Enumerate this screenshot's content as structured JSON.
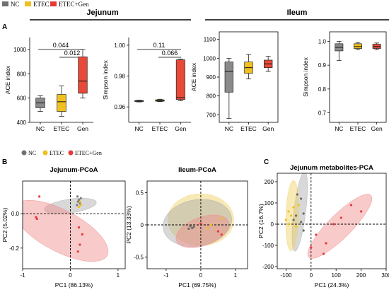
{
  "legend_top": [
    {
      "label": "NC",
      "color": "#707070"
    },
    {
      "label": "ETEC",
      "color": "#f0c020"
    },
    {
      "label": "ETEC+Gen",
      "color": "#e83838"
    }
  ],
  "legend_b": [
    {
      "label": "NC",
      "color": "#707070"
    },
    {
      "label": "ETEC",
      "color": "#f0c020"
    },
    {
      "label": "ETEC+Gen",
      "color": "#e83838"
    }
  ],
  "section_labels": {
    "jejunum": "Jejunum",
    "ileum": "Ileum"
  },
  "panel_letters": {
    "a": "A",
    "b": "B",
    "c": "C"
  },
  "sig": {
    "ace_jej_1": "0.044",
    "ace_jej_2": "0.012",
    "simp_jej_1": "0.11",
    "simp_jej_2": "0.066"
  },
  "chart_data": [
    {
      "id": "ace_jejunum",
      "type": "box",
      "ylabel": "ACE index",
      "categories": [
        "NC",
        "ETEC",
        "Gen"
      ],
      "yticks": [
        400,
        600,
        800,
        1000
      ],
      "ylim": [
        400,
        1100
      ],
      "boxes": [
        {
          "min": 490,
          "q1": 520,
          "median": 560,
          "q3": 600,
          "max": 620,
          "color": "#8a8a8a"
        },
        {
          "min": 450,
          "q1": 490,
          "median": 570,
          "q3": 630,
          "max": 700,
          "color": "#f0c020"
        },
        {
          "min": 600,
          "q1": 640,
          "median": 740,
          "q3": 940,
          "max": 1000,
          "color": "#e84a3a"
        }
      ]
    },
    {
      "id": "simpson_jejunum",
      "type": "box",
      "ylabel": "Simpson index",
      "categories": [
        "NC",
        "ETEC",
        "Gen"
      ],
      "yticks": [
        0.96,
        0.98,
        1.0
      ],
      "ylim": [
        0.95,
        1.005
      ],
      "boxes": [
        {
          "min": 0.9632,
          "q1": 0.9635,
          "median": 0.9638,
          "q3": 0.9641,
          "max": 0.9643,
          "color": "#8a8a8a"
        },
        {
          "min": 0.9634,
          "q1": 0.9637,
          "median": 0.9642,
          "q3": 0.9646,
          "max": 0.965,
          "color": "#f0c020"
        },
        {
          "min": 0.964,
          "q1": 0.9648,
          "median": 0.966,
          "q3": 0.9905,
          "max": 0.991,
          "color": "#e84a3a"
        }
      ]
    },
    {
      "id": "ace_ileum",
      "type": "box",
      "ylabel": "ACE index",
      "categories": [
        "NC",
        "ETEC",
        "Gen"
      ],
      "yticks": [
        700,
        800,
        900,
        1000,
        1100
      ],
      "ylim": [
        660,
        1140
      ],
      "boxes": [
        {
          "min": 680,
          "q1": 820,
          "median": 930,
          "q3": 980,
          "max": 1000,
          "color": "#8a8a8a"
        },
        {
          "min": 890,
          "q1": 920,
          "median": 950,
          "q3": 980,
          "max": 1020,
          "color": "#f0c020"
        },
        {
          "min": 930,
          "q1": 950,
          "median": 970,
          "q3": 990,
          "max": 1010,
          "color": "#e84a3a"
        }
      ]
    },
    {
      "id": "simpson_ileum",
      "type": "box",
      "ylabel": "Simpson index",
      "categories": [
        "NC",
        "ETEC",
        "Gen"
      ],
      "yticks": [
        0.7,
        0.8,
        0.9,
        1.0
      ],
      "ylim": [
        0.66,
        1.04
      ],
      "boxes": [
        {
          "min": 0.92,
          "q1": 0.96,
          "median": 0.975,
          "q3": 0.99,
          "max": 1.0,
          "color": "#8a8a8a"
        },
        {
          "min": 0.965,
          "q1": 0.97,
          "median": 0.978,
          "q3": 0.99,
          "max": 0.995,
          "color": "#f0c020"
        },
        {
          "min": 0.965,
          "q1": 0.97,
          "median": 0.978,
          "q3": 0.988,
          "max": 0.993,
          "color": "#e84a3a"
        }
      ]
    },
    {
      "id": "jejunum_pcoa",
      "type": "scatter",
      "title": "Jejunum-PCoA",
      "xlabel": "PC1 (86.13%)",
      "ylabel": "PC2 (5.02%)",
      "xlim": [
        -1.0,
        1.15
      ],
      "ylim": [
        -0.32,
        0.19
      ],
      "xticks": [
        -1,
        0,
        1
      ],
      "yticks": [
        0.0,
        -0.2
      ],
      "series": [
        {
          "color": "#7a7a7a",
          "points": [
            [
              0.15,
              0.1
            ],
            [
              0.18,
              0.08
            ],
            [
              0.2,
              0.06
            ],
            [
              0.14,
              0.05
            ],
            [
              0.22,
              0.09
            ],
            [
              0.16,
              0.07
            ]
          ]
        },
        {
          "color": "#f0c020",
          "points": [
            [
              0.2,
              0.07
            ],
            [
              0.18,
              0.04
            ],
            [
              0.22,
              0.05
            ]
          ]
        },
        {
          "color": "#e83838",
          "points": [
            [
              -0.65,
              0.1
            ],
            [
              -0.72,
              -0.02
            ],
            [
              -0.7,
              -0.03
            ],
            [
              0.18,
              -0.08
            ],
            [
              0.25,
              -0.12
            ],
            [
              0.2,
              -0.18
            ],
            [
              0.16,
              -0.22
            ]
          ]
        }
      ],
      "ellipses": [
        {
          "cx": 0.0,
          "cy": 0.045,
          "rx": 0.55,
          "ry": 0.04,
          "angle": -8,
          "color": "#a8a8a8"
        },
        {
          "cx": -0.2,
          "cy": -0.1,
          "rx": 1.1,
          "ry": 0.12,
          "angle": 28,
          "color": "#f08a8a"
        }
      ]
    },
    {
      "id": "ileum_pcoa",
      "type": "scatter",
      "title": "Ileum-PCoA",
      "xlabel": "PC1 (69.75%)",
      "ylabel": "PC2 (13.33%)",
      "xlim": [
        -1.55,
        1.35
      ],
      "ylim": [
        -0.68,
        0.68
      ],
      "xticks": [
        -1,
        0,
        1
      ],
      "yticks": [
        0.5,
        0,
        -0.5
      ],
      "series": [
        {
          "color": "#6a6a6a",
          "points": [
            [
              -0.3,
              -0.02
            ],
            [
              -0.25,
              -0.05
            ],
            [
              -0.2,
              -0.03
            ],
            [
              -0.35,
              -0.06
            ]
          ]
        },
        {
          "color": "#f0c020",
          "points": [
            [
              0.6,
              0.1
            ],
            [
              0.3,
              0.0
            ],
            [
              0.2,
              -0.05
            ]
          ]
        },
        {
          "color": "#e83838",
          "points": [
            [
              0.5,
              -0.1
            ],
            [
              0.6,
              -0.15
            ],
            [
              0.0,
              0.02
            ]
          ]
        }
      ],
      "ellipses": [
        {
          "cx": 0.0,
          "cy": 0.08,
          "rx": 0.95,
          "ry": 0.4,
          "angle": 0,
          "color": "#f0d060"
        },
        {
          "cx": -0.1,
          "cy": 0.03,
          "rx": 1.0,
          "ry": 0.36,
          "angle": -10,
          "color": "#a8a8a8"
        },
        {
          "cx": 0.05,
          "cy": -0.1,
          "rx": 0.8,
          "ry": 0.22,
          "angle": -20,
          "color": "#f08a8a"
        }
      ]
    },
    {
      "id": "metabolites_pca",
      "type": "scatter",
      "title": "Jejunum metabolites-PCA",
      "xlabel": "PC1 (24.3%)",
      "ylabel": "PC2 (16.7%)",
      "xlim": [
        -135,
        300
      ],
      "ylim": [
        -210,
        240
      ],
      "xticks": [
        -100,
        0,
        100,
        200,
        300
      ],
      "yticks": [
        200,
        100,
        0,
        -100,
        -200
      ],
      "series": [
        {
          "color": "#6a6a6a",
          "points": [
            [
              -55,
              140
            ],
            [
              -40,
              120
            ],
            [
              -70,
              20
            ],
            [
              -30,
              -30
            ],
            [
              -40,
              10
            ],
            [
              -60,
              40
            ],
            [
              -30,
              50
            ]
          ]
        },
        {
          "color": "#f0c020",
          "points": [
            [
              -90,
              60
            ],
            [
              -80,
              40
            ],
            [
              -70,
              80
            ],
            [
              -60,
              -10
            ],
            [
              -90,
              0
            ],
            [
              -50,
              90
            ],
            [
              -100,
              20
            ]
          ]
        },
        {
          "color": "#e83838",
          "points": [
            [
              160,
              90
            ],
            [
              200,
              60
            ],
            [
              120,
              30
            ],
            [
              90,
              0
            ],
            [
              20,
              -50
            ],
            [
              0,
              -110
            ],
            [
              60,
              -90
            ],
            [
              50,
              -140
            ]
          ]
        }
      ],
      "ellipses": [
        {
          "cx": -45,
          "cy": 60,
          "rx": 160,
          "ry": 28,
          "angle": 97,
          "color": "#a8a8a8"
        },
        {
          "cx": -75,
          "cy": 40,
          "rx": 140,
          "ry": 30,
          "angle": 92,
          "color": "#f0d060"
        },
        {
          "cx": 115,
          "cy": -10,
          "rx": 175,
          "ry": 55,
          "angle": -45,
          "color": "#f08a8a"
        }
      ]
    }
  ]
}
